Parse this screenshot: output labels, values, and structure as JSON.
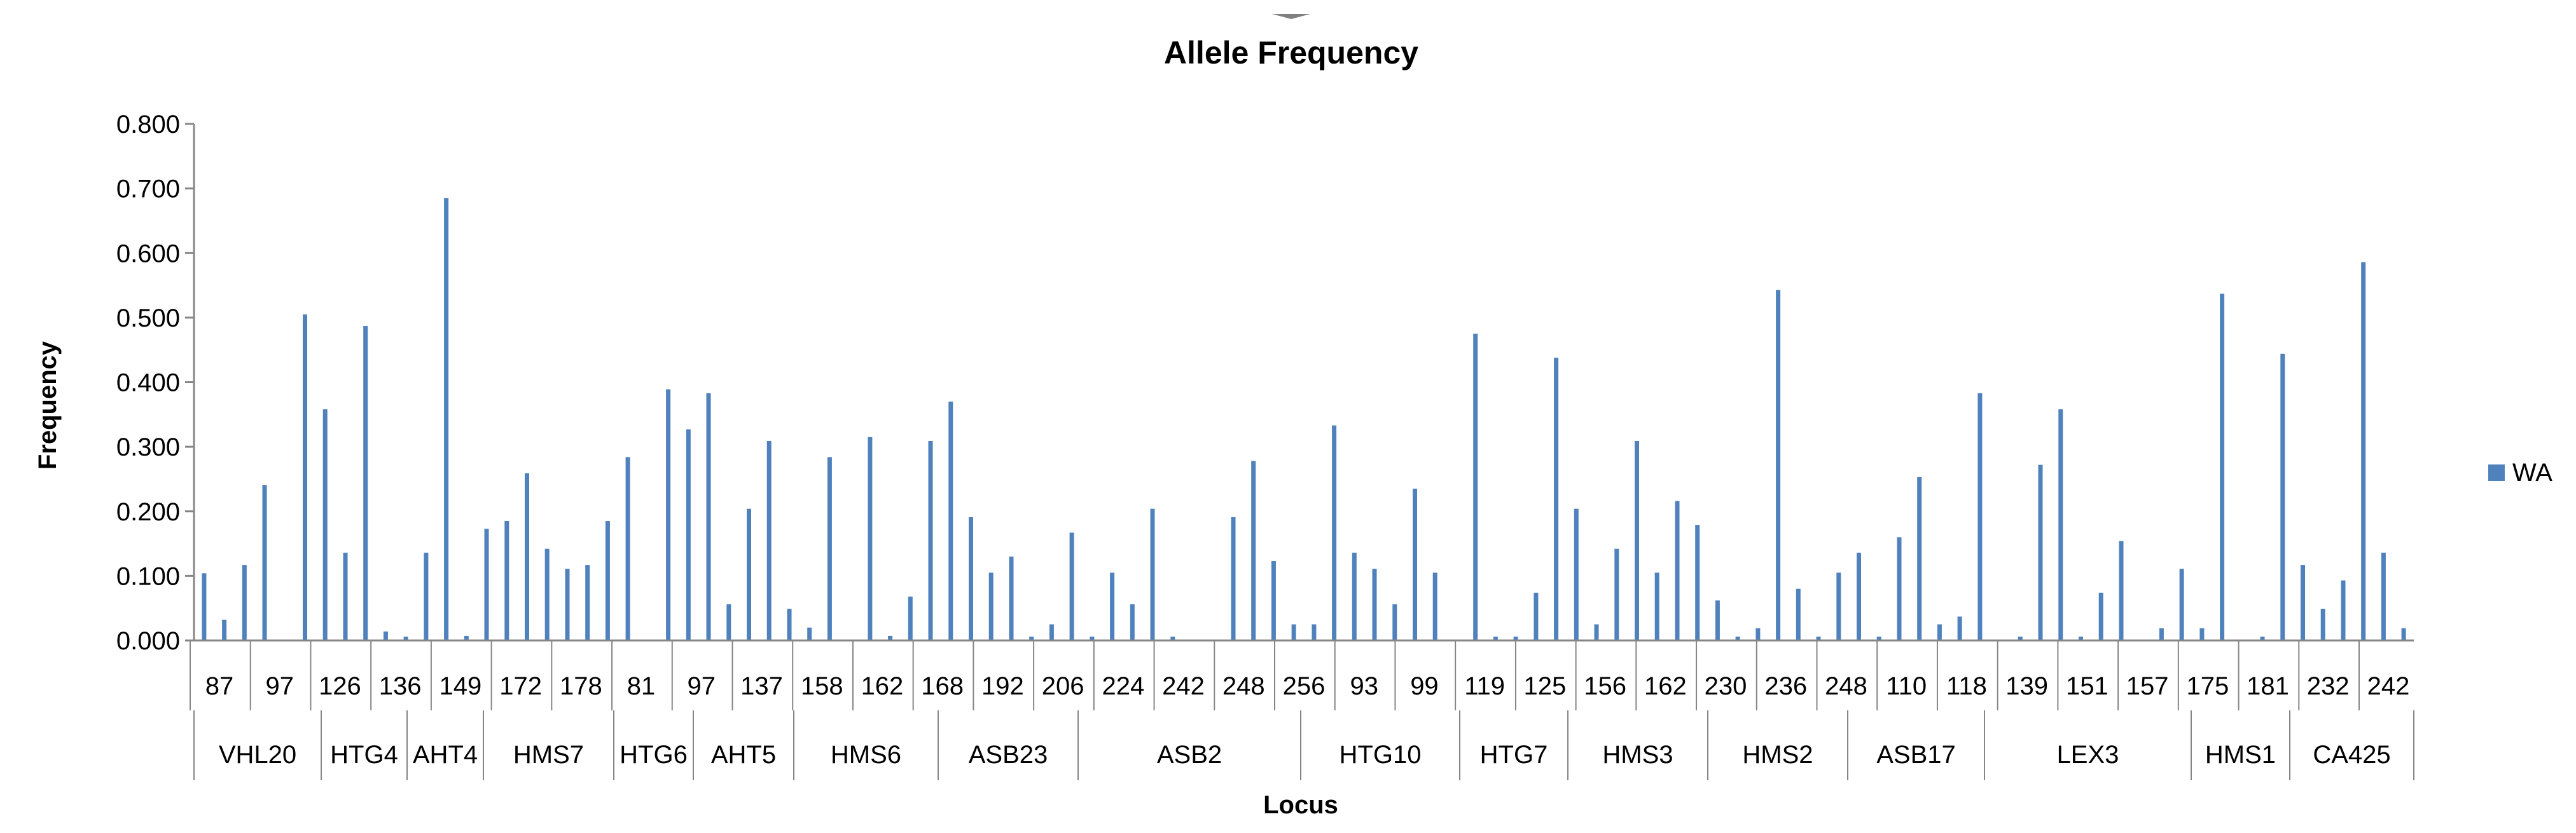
{
  "chart_data": {
    "type": "bar",
    "title": "Allele Frequency",
    "xlabel": "Locus",
    "ylabel": "Frequency",
    "ylim": [
      0,
      0.8
    ],
    "y_ticks": [
      "0.000",
      "0.100",
      "0.200",
      "0.300",
      "0.400",
      "0.500",
      "0.600",
      "0.700",
      "0.800"
    ],
    "legend_position": "right",
    "series": [
      {
        "name": "WA",
        "color": "#4F81BD",
        "values": [
          0.104,
          0.032,
          0.117,
          0.241,
          0.0,
          0.505,
          0.358,
          0.136,
          0.487,
          0.014,
          0.006,
          0.136,
          0.685,
          0.007,
          0.173,
          0.185,
          0.259,
          0.142,
          0.111,
          0.117,
          0.185,
          0.284,
          0.0,
          0.389,
          0.327,
          0.383,
          0.056,
          0.204,
          0.309,
          0.049,
          0.02,
          0.284,
          0.0,
          0.315,
          0.007,
          0.068,
          0.309,
          0.37,
          0.191,
          0.105,
          0.13,
          0.006,
          0.025,
          0.167,
          0.006,
          0.105,
          0.056,
          0.204,
          0.006,
          0.0,
          0.0,
          0.191,
          0.278,
          0.123,
          0.025,
          0.025,
          0.333,
          0.136,
          0.111,
          0.056,
          0.235,
          0.105,
          0.0,
          0.475,
          0.006,
          0.006,
          0.074,
          0.438,
          0.204,
          0.025,
          0.142,
          0.309,
          0.105,
          0.216,
          0.179,
          0.062,
          0.006,
          0.019,
          0.543,
          0.08,
          0.006,
          0.105,
          0.136,
          0.006,
          0.16,
          0.253,
          0.025,
          0.037,
          0.383,
          0.0,
          0.006,
          0.272,
          0.358,
          0.006,
          0.074,
          0.154,
          0.0,
          0.019,
          0.111,
          0.019,
          0.537,
          0.0,
          0.006,
          0.444,
          0.117,
          0.049,
          0.093,
          0.586,
          0.136,
          0.019
        ]
      }
    ],
    "category_ticks": [
      "87",
      "97",
      "126",
      "136",
      "149",
      "172",
      "178",
      "81",
      "97",
      "137",
      "158",
      "162",
      "168",
      "192",
      "206",
      "224",
      "242",
      "248",
      "256",
      "93",
      "99",
      "119",
      "125",
      "156",
      "162",
      "230",
      "236",
      "248",
      "110",
      "118",
      "139",
      "151",
      "157",
      "175",
      "181",
      "232",
      "242"
    ],
    "groups": [
      "VHL20",
      "HTG4",
      "AHT4",
      "HMS7",
      "HTG6",
      "AHT5",
      "HMS6",
      "ASB23",
      "ASB2",
      "HTG10",
      "HTG7",
      "HMS3",
      "HMS2",
      "ASB17",
      "LEX3",
      "HMS1",
      "CA425"
    ]
  }
}
